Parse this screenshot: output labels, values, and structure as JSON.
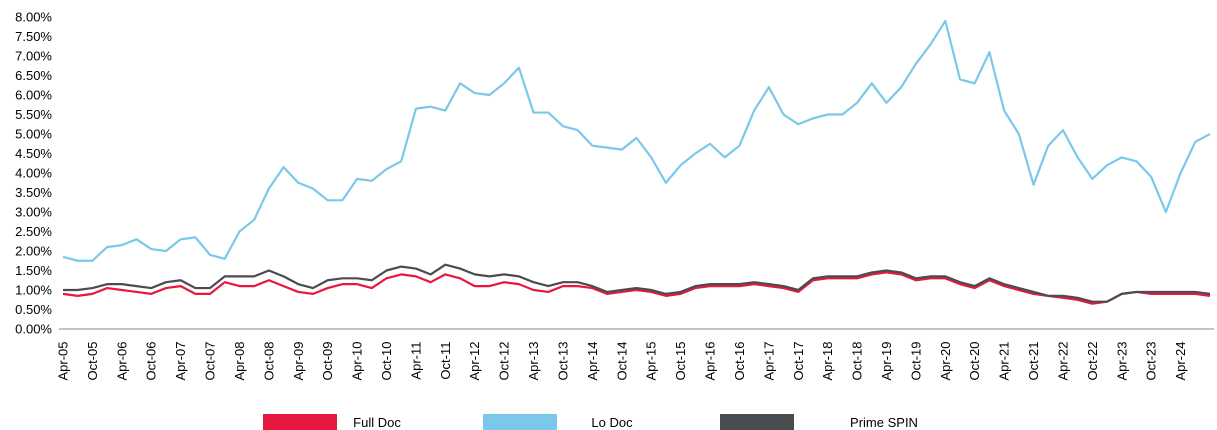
{
  "chart_data": {
    "type": "line",
    "categories": [
      "Apr-05",
      null,
      "Oct-05",
      null,
      "Apr-06",
      null,
      "Oct-06",
      null,
      "Apr-07",
      null,
      "Oct-07",
      null,
      "Apr-08",
      null,
      "Oct-08",
      null,
      "Apr-09",
      null,
      "Oct-09",
      null,
      "Apr-10",
      null,
      "Oct-10",
      null,
      "Apr-11",
      null,
      "Oct-11",
      null,
      "Apr-12",
      null,
      "Oct-12",
      null,
      "Apr-13",
      null,
      "Oct-13",
      null,
      "Apr-14",
      null,
      "Oct-14",
      null,
      "Apr-15",
      null,
      "Oct-15",
      null,
      "Apr-16",
      null,
      "Oct-16",
      null,
      "Apr-17",
      null,
      "Oct-17",
      null,
      "Apr-18",
      null,
      "Oct-18",
      null,
      "Apr-19",
      null,
      "Oct-19",
      null,
      "Apr-20",
      null,
      "Oct-20",
      null,
      "Apr-21",
      null,
      "Oct-21",
      null,
      "Apr-22",
      null,
      "Oct-22",
      null,
      "Apr-23",
      null,
      "Oct-23",
      null,
      "Apr-24",
      null,
      null
    ],
    "series": [
      {
        "name": "Full Doc",
        "color": "#e8173f",
        "values": [
          0.9,
          0.85,
          0.9,
          1.05,
          1.0,
          0.95,
          0.9,
          1.05,
          1.1,
          0.9,
          0.9,
          1.2,
          1.1,
          1.1,
          1.25,
          1.1,
          0.95,
          0.9,
          1.05,
          1.15,
          1.15,
          1.05,
          1.3,
          1.4,
          1.35,
          1.2,
          1.4,
          1.3,
          1.1,
          1.1,
          1.2,
          1.15,
          1.0,
          0.95,
          1.1,
          1.1,
          1.05,
          0.9,
          0.95,
          1.0,
          0.95,
          0.85,
          0.9,
          1.05,
          1.1,
          1.1,
          1.1,
          1.15,
          1.1,
          1.05,
          0.95,
          1.25,
          1.3,
          1.3,
          1.3,
          1.4,
          1.45,
          1.4,
          1.25,
          1.3,
          1.3,
          1.15,
          1.05,
          1.25,
          1.1,
          1.0,
          0.9,
          0.85,
          0.8,
          0.75,
          0.65,
          0.7,
          0.9,
          0.95,
          0.9,
          0.9,
          0.9,
          0.9,
          0.85
        ]
      },
      {
        "name": "Lo Doc",
        "color": "#7ac8ea",
        "values": [
          1.85,
          1.75,
          1.75,
          2.1,
          2.15,
          2.3,
          2.05,
          2.0,
          2.3,
          2.35,
          1.9,
          1.8,
          2.5,
          2.8,
          3.6,
          4.15,
          3.75,
          3.6,
          3.3,
          3.3,
          3.85,
          3.8,
          4.1,
          4.3,
          5.65,
          5.7,
          5.6,
          6.3,
          6.05,
          6.0,
          6.3,
          6.7,
          5.55,
          5.55,
          5.2,
          5.1,
          4.7,
          4.65,
          4.6,
          4.9,
          4.4,
          3.75,
          4.2,
          4.5,
          4.75,
          4.4,
          4.7,
          5.6,
          6.2,
          5.5,
          5.25,
          5.4,
          5.5,
          5.5,
          5.8,
          6.3,
          5.8,
          6.2,
          6.8,
          7.3,
          7.9,
          6.4,
          6.3,
          7.1,
          5.6,
          5.0,
          3.7,
          4.7,
          5.1,
          4.4,
          3.85,
          4.2,
          4.4,
          4.3,
          3.9,
          3.0,
          4.0,
          4.8,
          5.0
        ]
      },
      {
        "name": "Prime SPIN",
        "color": "#4a4d50",
        "values": [
          1.0,
          1.0,
          1.05,
          1.15,
          1.15,
          1.1,
          1.05,
          1.2,
          1.25,
          1.05,
          1.05,
          1.35,
          1.35,
          1.35,
          1.5,
          1.35,
          1.15,
          1.05,
          1.25,
          1.3,
          1.3,
          1.25,
          1.5,
          1.6,
          1.55,
          1.4,
          1.65,
          1.55,
          1.4,
          1.35,
          1.4,
          1.35,
          1.2,
          1.1,
          1.2,
          1.2,
          1.1,
          0.95,
          1.0,
          1.05,
          1.0,
          0.9,
          0.95,
          1.1,
          1.15,
          1.15,
          1.15,
          1.2,
          1.15,
          1.1,
          1.0,
          1.3,
          1.35,
          1.35,
          1.35,
          1.45,
          1.5,
          1.45,
          1.3,
          1.35,
          1.35,
          1.2,
          1.1,
          1.3,
          1.15,
          1.05,
          0.95,
          0.85,
          0.85,
          0.8,
          0.7,
          0.7,
          0.9,
          0.95,
          0.95,
          0.95,
          0.95,
          0.95,
          0.9
        ]
      }
    ],
    "ylim": [
      0,
      8
    ],
    "yticks": [
      {
        "value": 0,
        "label": "0.00%"
      },
      {
        "value": 0.5,
        "label": "0.50%"
      },
      {
        "value": 1,
        "label": "1.00%"
      },
      {
        "value": 1.5,
        "label": "1.50%"
      },
      {
        "value": 2,
        "label": "2.00%"
      },
      {
        "value": 2.5,
        "label": "2.50%"
      },
      {
        "value": 3,
        "label": "3.00%"
      },
      {
        "value": 3.5,
        "label": "3.50%"
      },
      {
        "value": 4,
        "label": "4.00%"
      },
      {
        "value": 4.5,
        "label": "4.50%"
      },
      {
        "value": 5,
        "label": "5.00%"
      },
      {
        "value": 5.5,
        "label": "5.50%"
      },
      {
        "value": 6,
        "label": "6.00%"
      },
      {
        "value": 6.5,
        "label": "6.50%"
      },
      {
        "value": 7,
        "label": "7.00%"
      },
      {
        "value": 7.5,
        "label": "7.50%"
      },
      {
        "value": 8,
        "label": "8.00%"
      }
    ],
    "grid": false,
    "legend": "bottom"
  }
}
